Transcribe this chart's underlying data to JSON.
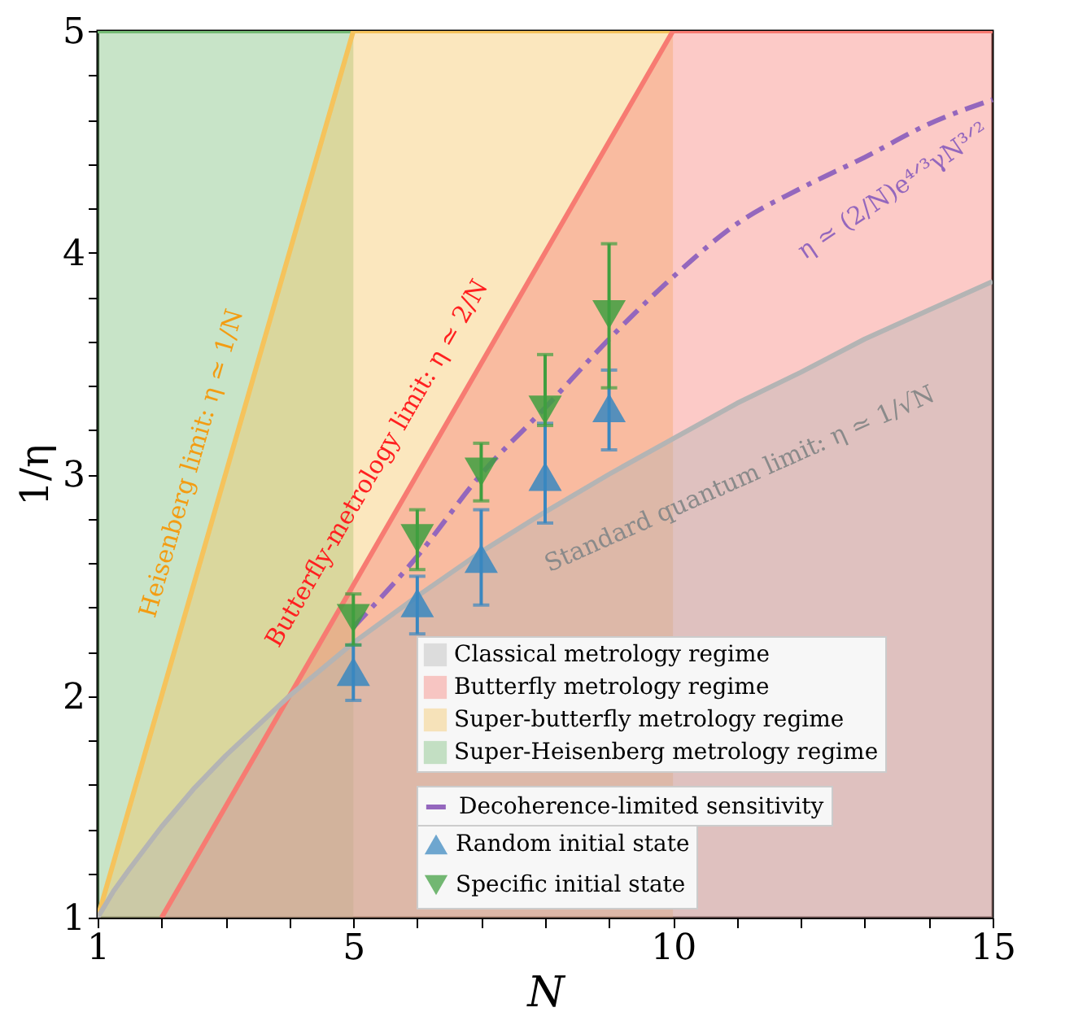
{
  "chart_data": {
    "type": "area",
    "xlabel": "N",
    "ylabel": "1/η",
    "xlim": [
      1,
      15
    ],
    "ylim": [
      1,
      5
    ],
    "xticks": [
      1,
      {
        "value": 2,
        "label": null
      },
      {
        "value": 3,
        "label": null
      },
      {
        "value": 4,
        "label": null
      },
      5,
      {
        "value": 6,
        "label": null
      },
      {
        "value": 7,
        "label": null
      },
      {
        "value": 8,
        "label": null
      },
      {
        "value": 9,
        "label": null
      },
      10,
      {
        "value": 11,
        "label": null
      },
      {
        "value": 12,
        "label": null
      },
      {
        "value": 13,
        "label": null
      },
      {
        "value": 14,
        "label": null
      },
      15
    ],
    "yticks": [
      1,
      {
        "value": 1.2,
        "label": null
      },
      {
        "value": 1.4,
        "label": null
      },
      {
        "value": 1.6,
        "label": null
      },
      {
        "value": 1.8,
        "label": null
      },
      2,
      {
        "value": 2.2,
        "label": null
      },
      {
        "value": 2.4,
        "label": null
      },
      {
        "value": 2.6,
        "label": null
      },
      {
        "value": 2.8,
        "label": null
      },
      3,
      {
        "value": 3.2,
        "label": null
      },
      {
        "value": 3.4,
        "label": null
      },
      {
        "value": 3.6,
        "label": null
      },
      {
        "value": 3.8,
        "label": null
      },
      4,
      {
        "value": 4.2,
        "label": null
      },
      {
        "value": 4.4,
        "label": null
      },
      {
        "value": 4.6,
        "label": null
      },
      {
        "value": 4.8,
        "label": null
      },
      5
    ],
    "grid": false,
    "legend": "bottom right",
    "annotations": [
      "Heisenberg limit: η ≃ 1/N",
      "Butterfly-metrology limit: η ≃ 2/N",
      "Standard quantum limit: η ≃ 1/√N",
      "η ≃ (2/N)e⁴ᐟ³γN³ᐟ²"
    ],
    "series": [
      {
        "name": "Classical metrology regime",
        "color": "#b4b4b4",
        "x": [
          1,
          1.25,
          1.5,
          2,
          2.5,
          3,
          4,
          5,
          6,
          7,
          8,
          9,
          10,
          11,
          12,
          13,
          14,
          15
        ],
        "values": [
          1,
          1.12,
          1.22,
          1.41,
          1.58,
          1.73,
          2,
          2.24,
          2.45,
          2.65,
          2.83,
          3,
          3.16,
          3.32,
          3.46,
          3.61,
          3.74,
          3.87
        ]
      },
      {
        "name": "Butterfly metrology regime",
        "color": "#f77b72",
        "x": [
          2,
          3,
          4,
          5,
          6,
          7,
          8,
          9,
          10,
          15
        ],
        "values": [
          1,
          1.5,
          2,
          2.5,
          3,
          3.5,
          4,
          4.5,
          5,
          5
        ]
      },
      {
        "name": "Super-butterfly metrology regime",
        "color": "#f5c35c",
        "x": [
          1,
          5,
          10
        ],
        "values": [
          1,
          5,
          5
        ]
      },
      {
        "name": "Super-Heisenberg metrology regime",
        "color": "#75bb75",
        "x": [
          1,
          5
        ],
        "values": [
          5,
          5
        ]
      },
      {
        "type": "line",
        "name": "Decoherence-limited sensitivity",
        "color": "#9467bd",
        "line_style": "dashdot",
        "x": [
          5,
          6,
          7,
          8,
          9,
          10,
          11,
          12,
          13,
          14,
          15
        ],
        "values": [
          2.31,
          2.63,
          3.0,
          3.3,
          3.61,
          3.89,
          4.13,
          4.29,
          4.43,
          4.58,
          4.69
        ]
      },
      {
        "type": "scatter",
        "name": "Random initial state",
        "color": "#3a87c0",
        "marker": "triangle",
        "x": [
          5,
          6,
          7,
          8,
          9
        ],
        "values": [
          2.11,
          2.42,
          2.62,
          2.99,
          3.3
        ],
        "errors": [
          [
            1.98,
            2.23
          ],
          [
            2.28,
            2.54
          ],
          [
            2.41,
            2.84
          ],
          [
            2.78,
            3.23
          ],
          [
            3.11,
            3.47
          ]
        ]
      },
      {
        "type": "scatter",
        "name": "Specific initial state",
        "color": "#3f9f3f",
        "marker": "triangle-down",
        "x": [
          5,
          6,
          7,
          8,
          9
        ],
        "values": [
          2.35,
          2.71,
          3.01,
          3.29,
          3.72
        ],
        "errors": [
          [
            2.23,
            2.46
          ],
          [
            2.57,
            2.84
          ],
          [
            2.88,
            3.14
          ],
          [
            3.22,
            3.54
          ],
          [
            3.39,
            4.04
          ]
        ]
      }
    ]
  }
}
